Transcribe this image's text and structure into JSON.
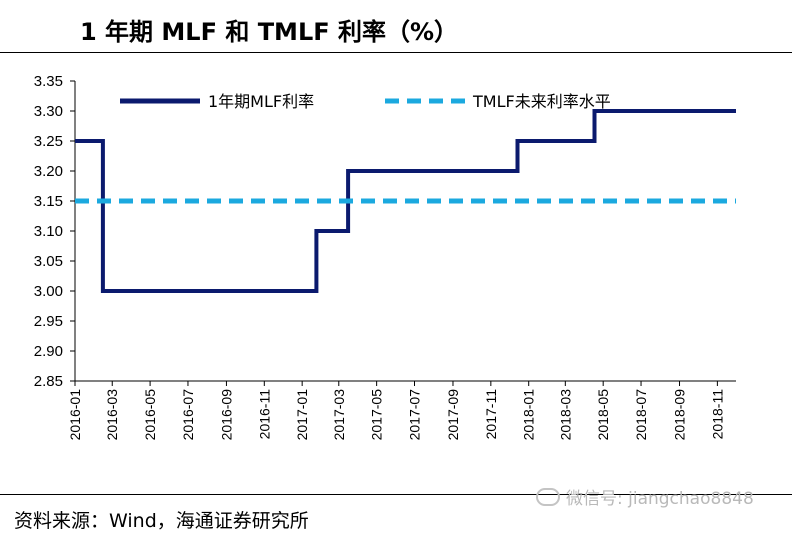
{
  "title": "1 年期 MLF 和 TMLF 利率（%）",
  "source": "资料来源：Wind，海通证券研究所",
  "watermark": "微信号: jiangchao8848",
  "chart_data": {
    "type": "line",
    "title": "",
    "xlabel": "",
    "ylabel": "",
    "ylim": [
      2.85,
      3.35
    ],
    "yticks": [
      "3.35",
      "3.30",
      "3.25",
      "3.20",
      "3.15",
      "3.10",
      "3.05",
      "3.00",
      "2.95",
      "2.90",
      "2.85"
    ],
    "xticks": [
      "2016-01",
      "2016-03",
      "2016-05",
      "2016-07",
      "2016-09",
      "2016-11",
      "2017-01",
      "2017-03",
      "2017-05",
      "2017-07",
      "2017-09",
      "2017-11",
      "2018-01",
      "2018-03",
      "2018-05",
      "2018-07",
      "2018-09",
      "2018-11"
    ],
    "xrange": [
      "2016-01-01",
      "2018-12-01"
    ],
    "legend_position": "top",
    "grid": false,
    "series": [
      {
        "name": "1年期MLF利率",
        "color": "#0b1a6e",
        "style": "solid",
        "step": true,
        "points": [
          [
            "2016-01-01",
            3.25
          ],
          [
            "2016-02-15",
            3.0
          ],
          [
            "2017-01-24",
            3.1
          ],
          [
            "2017-03-16",
            3.2
          ],
          [
            "2017-12-14",
            3.25
          ],
          [
            "2018-04-17",
            3.3
          ],
          [
            "2018-12-01",
            3.3
          ]
        ]
      },
      {
        "name": "TMLF未来利率水平",
        "color": "#1ba9df",
        "style": "dashed",
        "step": false,
        "points": [
          [
            "2016-01-01",
            3.15
          ],
          [
            "2018-12-01",
            3.15
          ]
        ]
      }
    ]
  }
}
